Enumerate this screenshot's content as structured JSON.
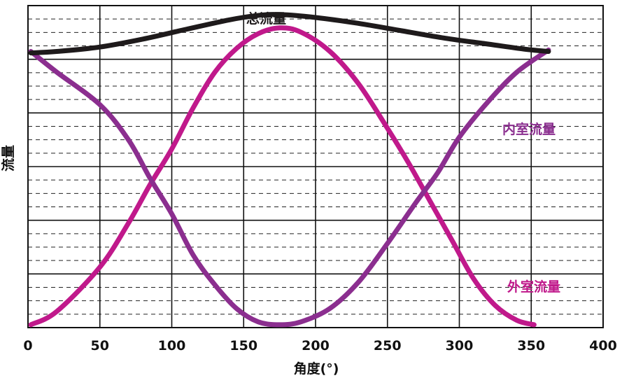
{
  "chart_data": {
    "type": "line",
    "title": "",
    "xlabel": "角度(°)",
    "ylabel": "流量",
    "xlim": [
      0,
      400
    ],
    "xticks": [
      "0",
      "50",
      "100",
      "150",
      "200",
      "250",
      "300",
      "350",
      "400"
    ],
    "y_major_divisions": 6,
    "y_minor_per_major": 4,
    "grid": true,
    "series": [
      {
        "name": "总流量",
        "color": "#1e1a1b",
        "points": [
          [
            2,
            0.925
          ],
          [
            20,
            0.93
          ],
          [
            50,
            0.945
          ],
          [
            80,
            0.972
          ],
          [
            110,
            1.005
          ],
          [
            140,
            1.037
          ],
          [
            160,
            1.052
          ],
          [
            175,
            1.055
          ],
          [
            200,
            1.045
          ],
          [
            230,
            1.025
          ],
          [
            260,
            1.0
          ],
          [
            290,
            0.975
          ],
          [
            320,
            0.955
          ],
          [
            345,
            0.938
          ],
          [
            362,
            0.93
          ]
        ]
      },
      {
        "name": "内室流量",
        "color": "#8b2e8f",
        "points": [
          [
            2,
            0.93
          ],
          [
            20,
            0.86
          ],
          [
            50,
            0.75
          ],
          [
            70,
            0.63
          ],
          [
            85,
            0.5
          ],
          [
            100,
            0.38
          ],
          [
            115,
            0.24
          ],
          [
            130,
            0.14
          ],
          [
            145,
            0.06
          ],
          [
            160,
            0.015
          ],
          [
            175,
            0.005
          ],
          [
            190,
            0.015
          ],
          [
            210,
            0.06
          ],
          [
            230,
            0.15
          ],
          [
            250,
            0.28
          ],
          [
            270,
            0.42
          ],
          [
            285,
            0.52
          ],
          [
            300,
            0.64
          ],
          [
            320,
            0.76
          ],
          [
            340,
            0.86
          ],
          [
            362,
            0.935
          ]
        ]
      },
      {
        "name": "外室流量",
        "color": "#c0198b",
        "points": [
          [
            2,
            0.005
          ],
          [
            20,
            0.05
          ],
          [
            50,
            0.2
          ],
          [
            70,
            0.35
          ],
          [
            85,
            0.48
          ],
          [
            100,
            0.6
          ],
          [
            115,
            0.74
          ],
          [
            130,
            0.86
          ],
          [
            145,
            0.94
          ],
          [
            160,
            0.99
          ],
          [
            175,
            1.01
          ],
          [
            190,
            0.995
          ],
          [
            210,
            0.93
          ],
          [
            230,
            0.82
          ],
          [
            250,
            0.67
          ],
          [
            265,
            0.55
          ],
          [
            280,
            0.42
          ],
          [
            295,
            0.29
          ],
          [
            310,
            0.16
          ],
          [
            325,
            0.07
          ],
          [
            340,
            0.02
          ],
          [
            352,
            0.005
          ]
        ]
      }
    ]
  }
}
